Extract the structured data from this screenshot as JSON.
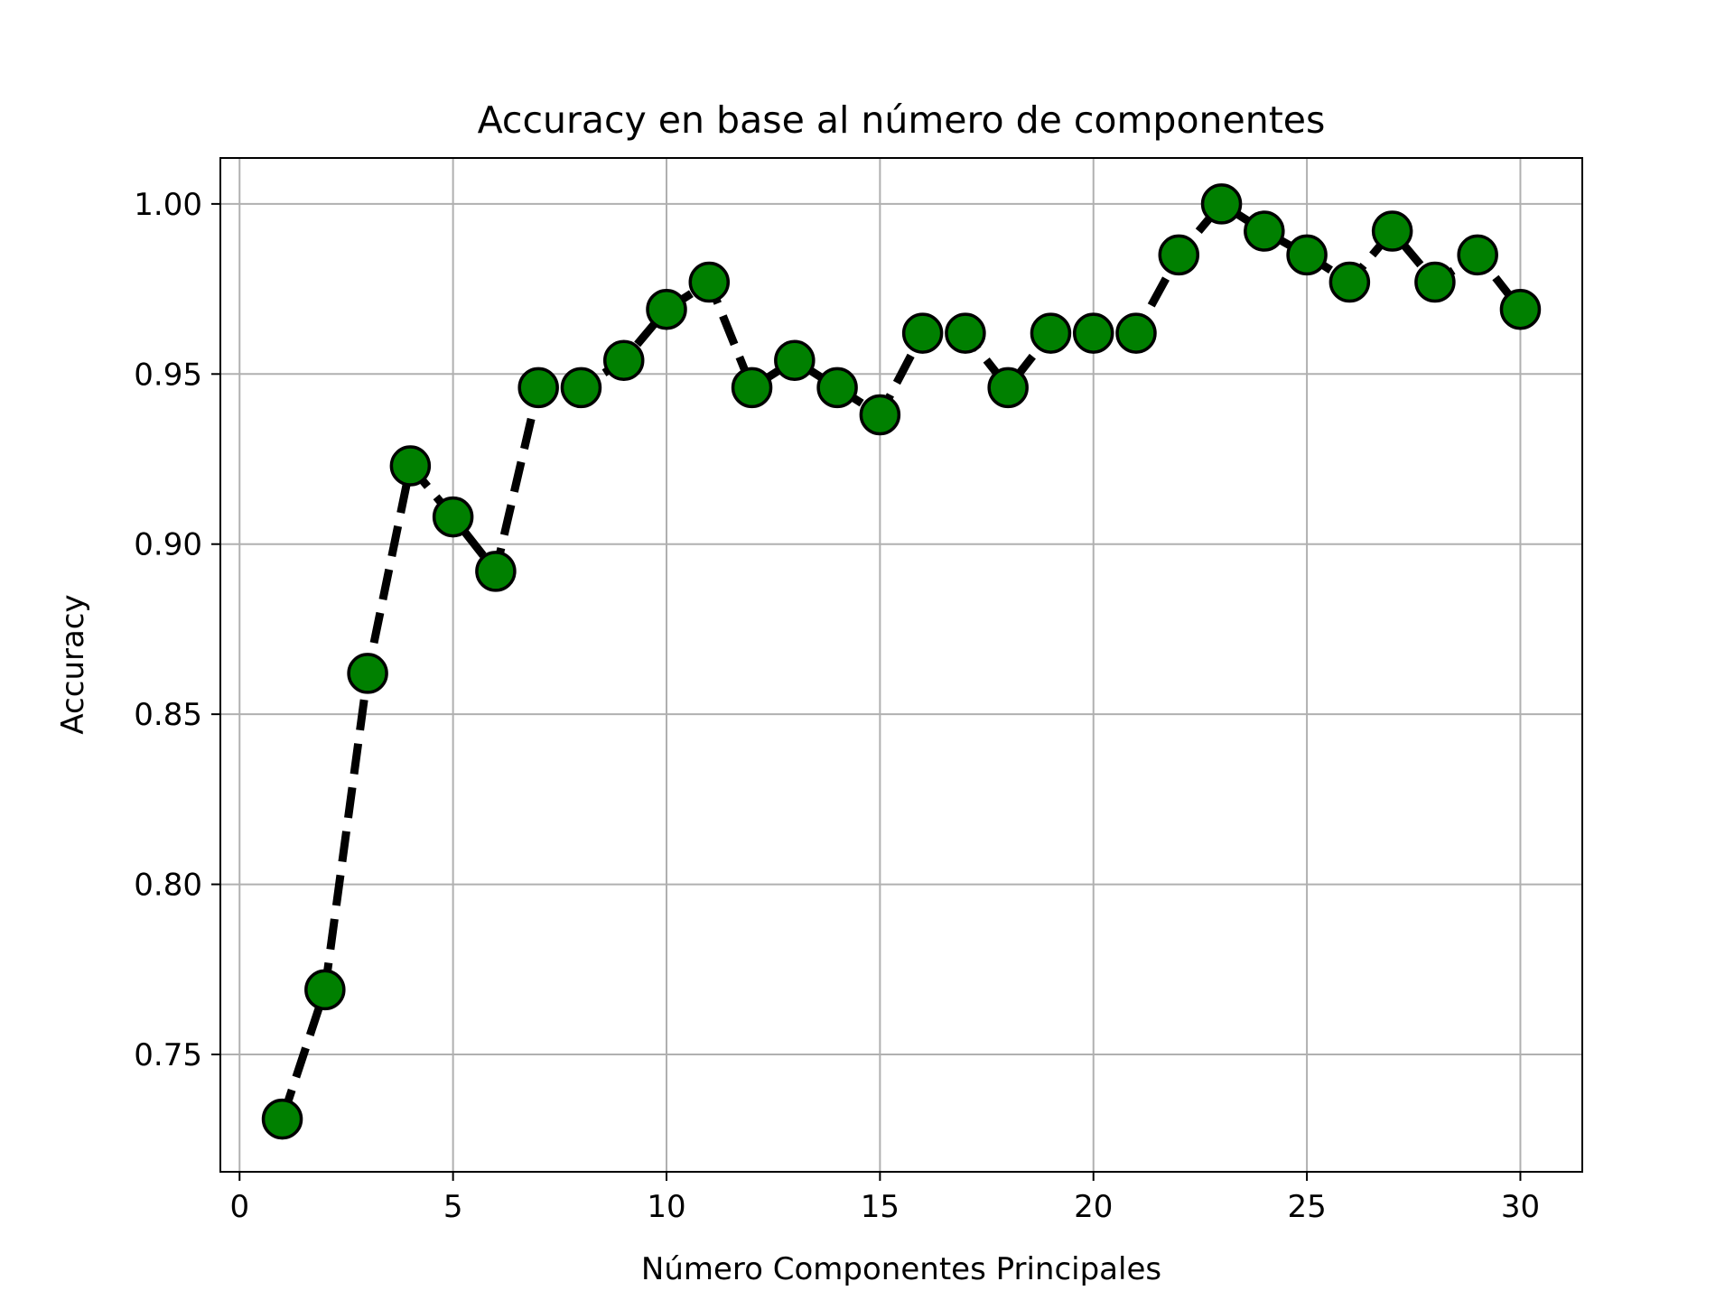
{
  "chart_data": {
    "type": "line",
    "title": "Accuracy en base al número de componentes",
    "xlabel": "Número Componentes Principales",
    "ylabel": "Accuracy",
    "xlim": [
      -0.45,
      31.45
    ],
    "ylim": [
      0.7155,
      1.0135
    ],
    "xticks": [
      0,
      5,
      10,
      15,
      20,
      25,
      30
    ],
    "xtick_labels": [
      "0",
      "5",
      "10",
      "15",
      "20",
      "25",
      "30"
    ],
    "yticks": [
      0.75,
      0.8,
      0.85,
      0.9,
      0.95,
      1.0
    ],
    "ytick_labels": [
      "0.75",
      "0.80",
      "0.85",
      "0.90",
      "0.95",
      "1.00"
    ],
    "grid": true,
    "series": [
      {
        "x": [
          1,
          2,
          3,
          4,
          5,
          6,
          7,
          8,
          9,
          10,
          11,
          12,
          13,
          14,
          15,
          16,
          17,
          18,
          19,
          20,
          21,
          22,
          23,
          24,
          25,
          26,
          27,
          28,
          29,
          30
        ],
        "y": [
          0.731,
          0.769,
          0.862,
          0.923,
          0.908,
          0.892,
          0.946,
          0.946,
          0.954,
          0.969,
          0.977,
          0.946,
          0.954,
          0.946,
          0.938,
          0.962,
          0.962,
          0.946,
          0.962,
          0.962,
          0.962,
          0.985,
          1.0,
          0.992,
          0.985,
          0.977,
          0.992,
          0.977,
          0.985,
          0.969
        ]
      }
    ],
    "colors": {
      "line": "#000000",
      "marker_fill": "#008000",
      "marker_edge": "#000000",
      "grid": "#b0b0b0"
    },
    "line_style": "dashed",
    "marker": "circle"
  }
}
